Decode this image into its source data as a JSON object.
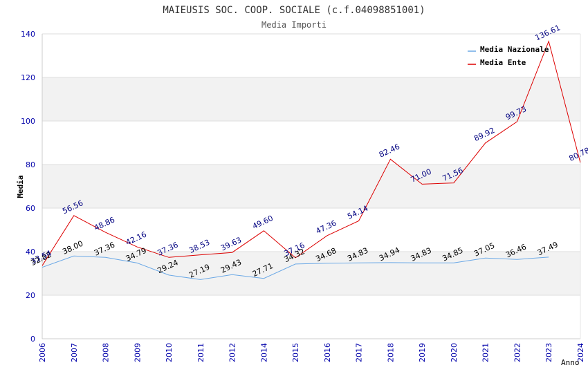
{
  "chart_data": {
    "type": "line",
    "title": "MAIEUSIS SOC. COOP. SOCIALE (c.f.04098851001)",
    "subtitle": "Media Importi",
    "xlabel": "Anno",
    "ylabel": "Media",
    "ylim": [
      0,
      140
    ],
    "yticks": [
      0,
      20,
      40,
      60,
      80,
      100,
      120,
      140
    ],
    "categories": [
      "2006",
      "2007",
      "2008",
      "2009",
      "2010",
      "2011",
      "2012",
      "2014",
      "2015",
      "2016",
      "2017",
      "2018",
      "2019",
      "2020",
      "2021",
      "2022",
      "2023",
      "2024"
    ],
    "grid": true,
    "legend_position": "top-right",
    "series": [
      {
        "name": "Media Nazionale",
        "color": "#6aa8e6",
        "label_color": "#000000",
        "values": [
          32.82,
          38.0,
          37.36,
          34.79,
          29.24,
          27.19,
          29.43,
          27.71,
          34.32,
          34.68,
          34.83,
          34.94,
          34.83,
          34.85,
          37.05,
          36.46,
          37.49,
          null
        ],
        "labels": [
          "32.82",
          "38.00",
          "37.36",
          "34.79",
          "29.24",
          "27.19",
          "29.43",
          "27.71",
          "34.32",
          "34.68",
          "34.83",
          "34.94",
          "34.83",
          "34.85",
          "37.05",
          "36.46",
          "37.49",
          null
        ]
      },
      {
        "name": "Media Ente",
        "color": "#dd0000",
        "label_color": "#000080",
        "values": [
          33.54,
          56.56,
          48.86,
          42.16,
          37.36,
          38.53,
          39.63,
          49.6,
          37.16,
          47.36,
          54.14,
          82.46,
          71.0,
          71.56,
          89.92,
          99.73,
          136.61,
          80.78
        ],
        "labels": [
          "33.54",
          "56.56",
          "48.86",
          "42.16",
          "37.36",
          "38.53",
          "39.63",
          "49.60",
          "37.16",
          "47.36",
          "54.14",
          "82.46",
          "71.00",
          "71.56",
          "89.92",
          "99.73",
          "136.61",
          "80.78"
        ]
      }
    ]
  },
  "colors": {
    "band": "#f2f2f2",
    "grid": "#dddddd",
    "axis_text": "#0000aa",
    "title": "#333333"
  }
}
